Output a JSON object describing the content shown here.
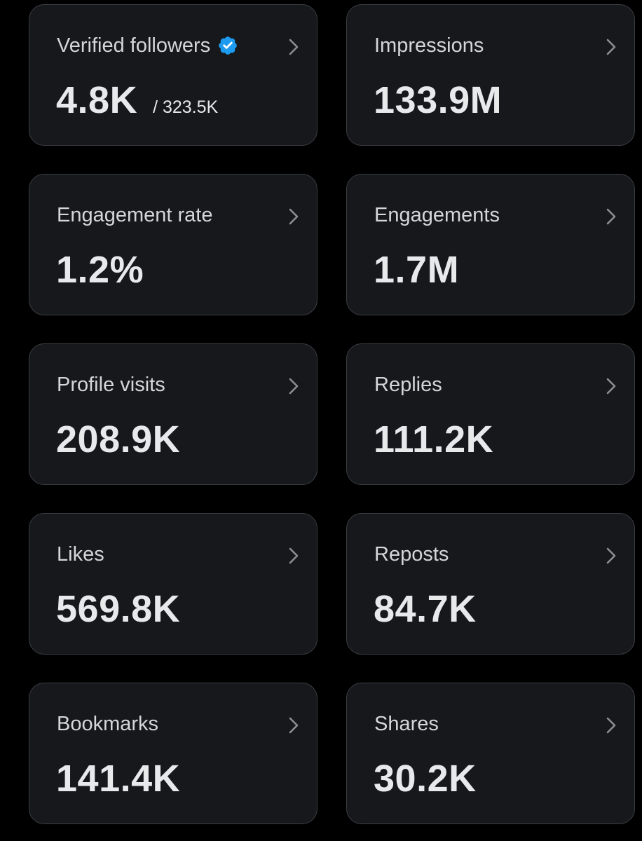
{
  "metrics": [
    {
      "label": "Verified followers",
      "value": "4.8K",
      "subvalue": "/ 323.5K",
      "icon": "verified-badge-icon"
    },
    {
      "label": "Impressions",
      "value": "133.9M"
    },
    {
      "label": "Engagement rate",
      "value": "1.2%"
    },
    {
      "label": "Engagements",
      "value": "1.7M"
    },
    {
      "label": "Profile visits",
      "value": "208.9K"
    },
    {
      "label": "Replies",
      "value": "111.2K"
    },
    {
      "label": "Likes",
      "value": "569.8K"
    },
    {
      "label": "Reposts",
      "value": "84.7K"
    },
    {
      "label": "Bookmarks",
      "value": "141.4K"
    },
    {
      "label": "Shares",
      "value": "30.2K"
    }
  ],
  "colors": {
    "background": "#000000",
    "card_background": "#16181c",
    "card_border": "#3a3d42",
    "label_text": "#d3d6da",
    "value_text": "#e7e9ea",
    "chevron": "#8b8f94",
    "verified_badge": "#1d9bf0"
  }
}
